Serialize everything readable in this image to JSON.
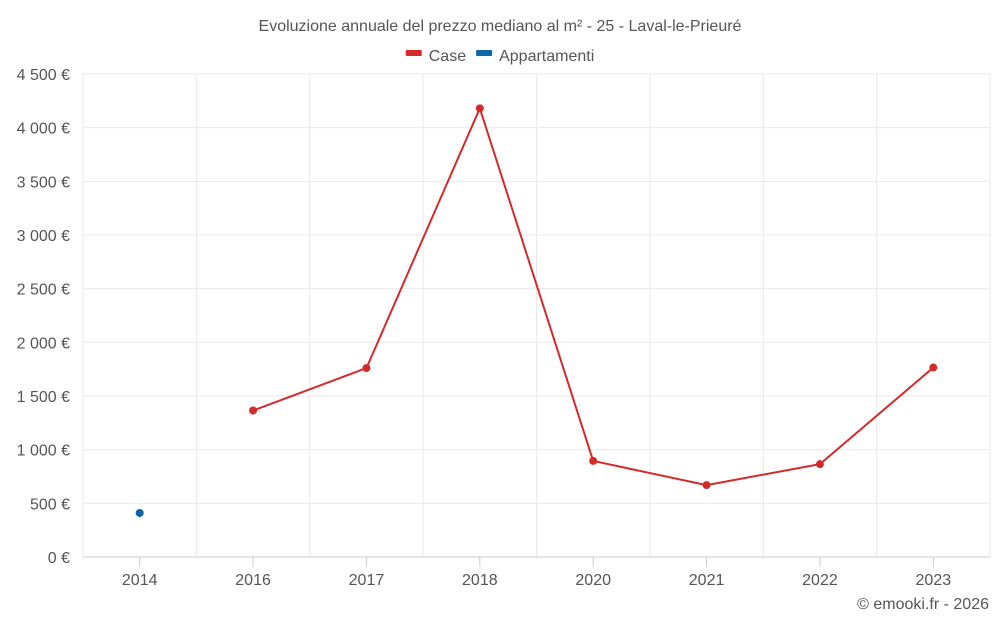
{
  "chart_data": {
    "type": "line",
    "title": "Evoluzione annuale del prezzo mediano al m² - 25 - Laval-le-Prieuré",
    "categories": [
      "2014",
      "2016",
      "2017",
      "2018",
      "2020",
      "2021",
      "2022",
      "2023"
    ],
    "series": [
      {
        "name": "Case",
        "color": "#d42a2a",
        "values": [
          null,
          1365,
          1760,
          4180,
          895,
          670,
          865,
          1765
        ]
      },
      {
        "name": "Appartamenti",
        "color": "#0b67a8",
        "values": [
          410,
          null,
          null,
          null,
          null,
          null,
          null,
          null
        ]
      }
    ],
    "ylim": [
      0,
      4500
    ],
    "yticks": [
      0,
      500,
      1000,
      1500,
      2000,
      2500,
      3000,
      3500,
      4000,
      4500
    ],
    "ytick_labels": [
      "0 €",
      "500 €",
      "1 000 €",
      "1 500 €",
      "2 000 €",
      "2 500 €",
      "3 000 €",
      "3 500 €",
      "4 000 €",
      "4 500 €"
    ],
    "xlabel": "",
    "ylabel": "",
    "legend_position": "top-center",
    "grid": true
  },
  "credit": "© emooki.fr - 2026"
}
